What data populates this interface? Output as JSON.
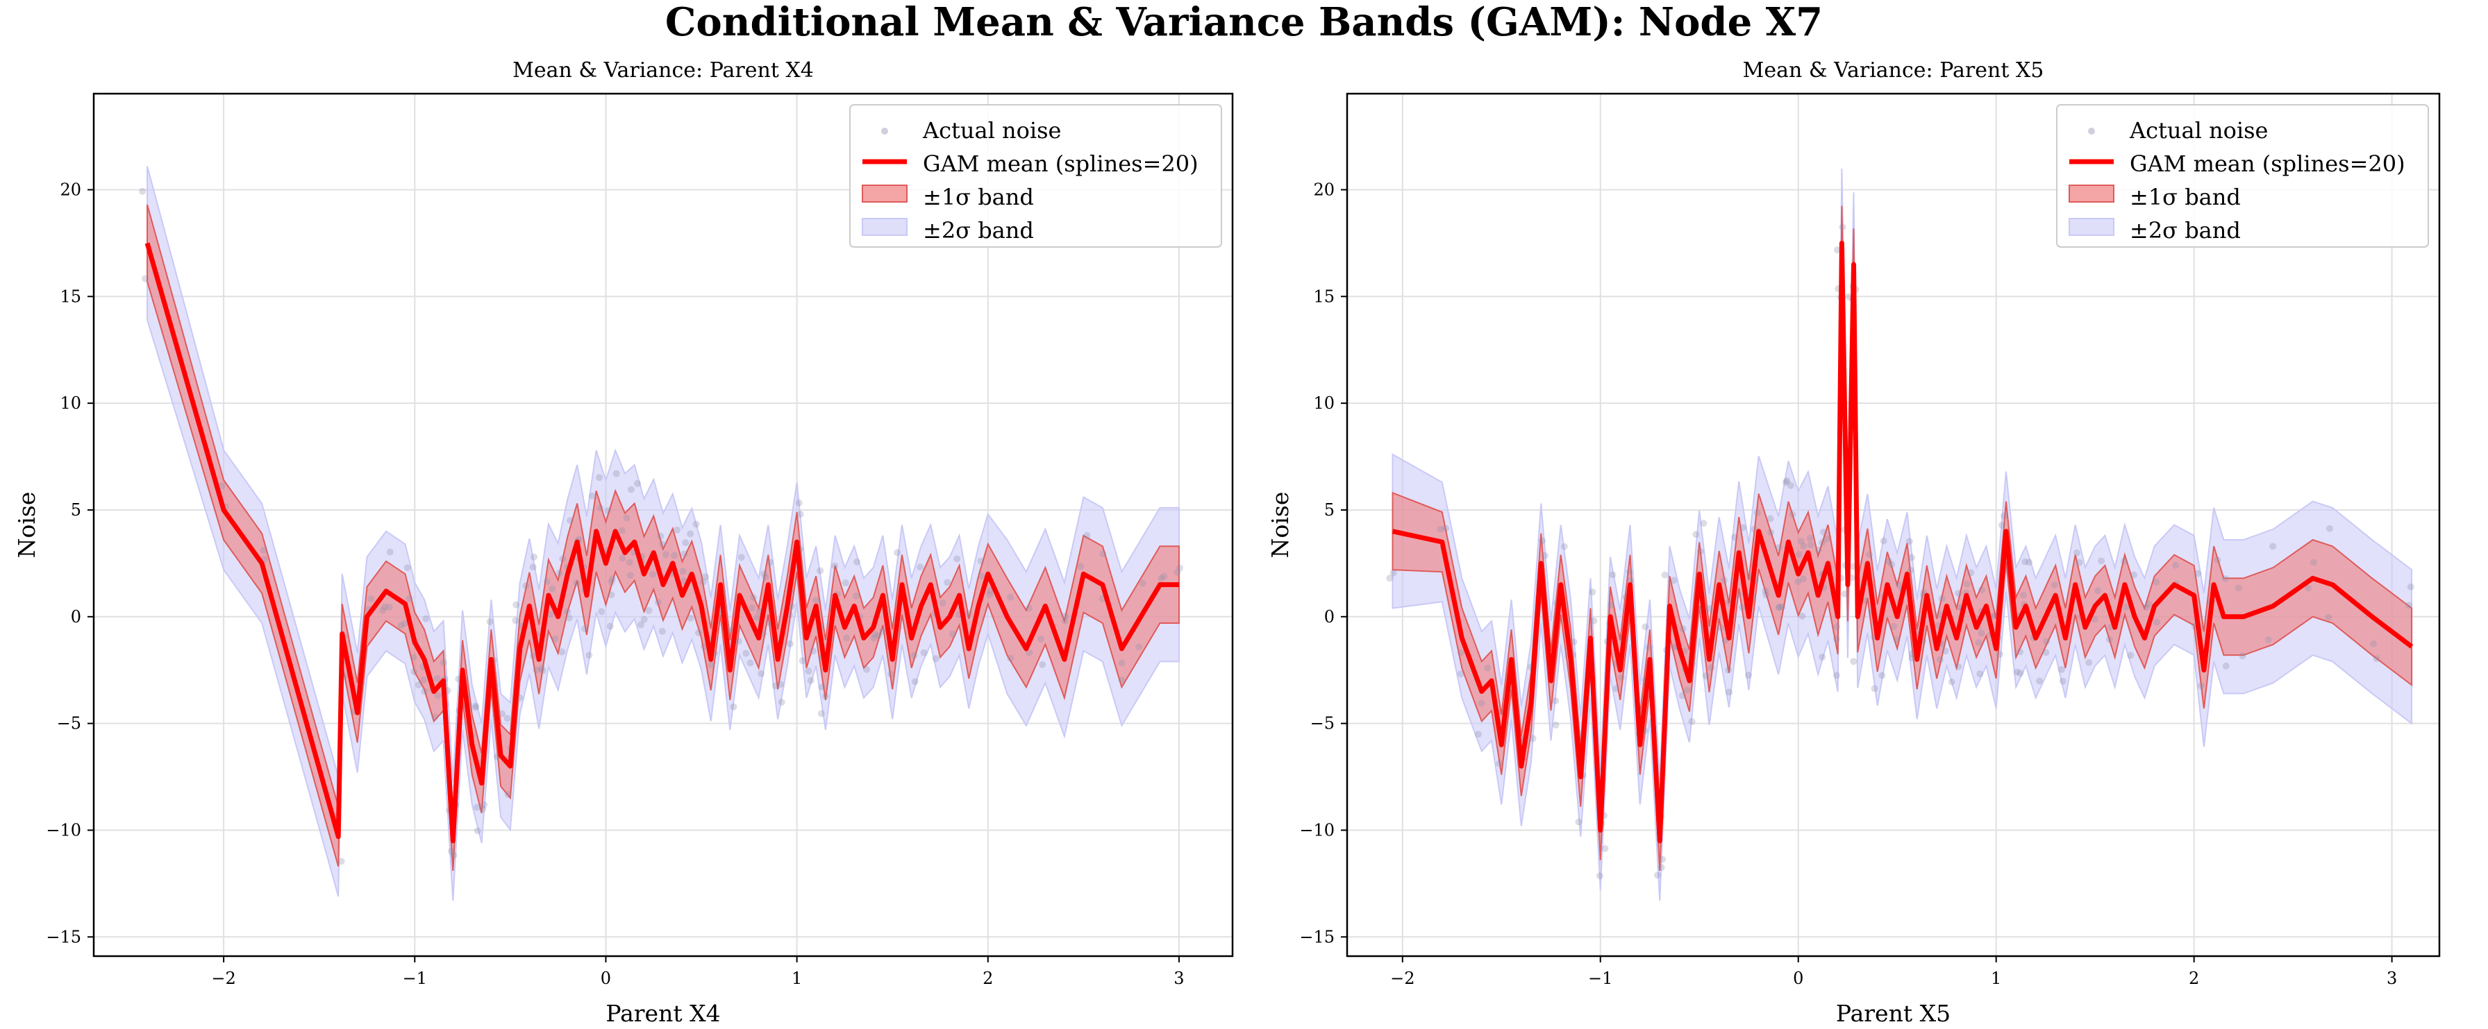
{
  "title": "Conditional Mean & Variance Bands (GAM): Node X7",
  "colors": {
    "mean": "#ff0000",
    "band1": "#f07f7f",
    "band2": "#c9c9f7",
    "points": "#8a8aa8",
    "grid": "#e0e0e0"
  },
  "chart_data": [
    {
      "type": "line",
      "title": "Mean & Variance: Parent X4",
      "xlabel": "Parent X4",
      "ylabel": "Noise",
      "xlim": [
        -2.68,
        3.28
      ],
      "ylim": [
        -15.9,
        24.5
      ],
      "xticks": [
        -2,
        -1,
        0,
        1,
        2,
        3
      ],
      "xtick_labels": [
        "−2",
        "−1",
        "0",
        "1",
        "2",
        "3"
      ],
      "yticks": [
        -15,
        -10,
        -5,
        0,
        5,
        10,
        15,
        20
      ],
      "ytick_labels": [
        "−15",
        "−10",
        "−5",
        "0",
        "5",
        "10",
        "15",
        "20"
      ],
      "grid": true,
      "legend_position": "top-right",
      "legend": [
        "Actual noise",
        "GAM mean (splines=20)",
        "±1σ band",
        "±2σ band"
      ],
      "series": [
        {
          "name": "GAM mean (splines=20)",
          "x": [
            -2.4,
            -2.0,
            -1.8,
            -1.4,
            -1.38,
            -1.3,
            -1.25,
            -1.15,
            -1.05,
            -1.0,
            -0.95,
            -0.9,
            -0.85,
            -0.8,
            -0.75,
            -0.7,
            -0.65,
            -0.6,
            -0.55,
            -0.5,
            -0.45,
            -0.4,
            -0.35,
            -0.3,
            -0.25,
            -0.2,
            -0.15,
            -0.1,
            -0.05,
            0.0,
            0.05,
            0.1,
            0.15,
            0.2,
            0.25,
            0.3,
            0.35,
            0.4,
            0.45,
            0.5,
            0.55,
            0.6,
            0.65,
            0.7,
            0.75,
            0.8,
            0.85,
            0.9,
            0.95,
            1.0,
            1.05,
            1.1,
            1.15,
            1.2,
            1.25,
            1.3,
            1.35,
            1.4,
            1.45,
            1.5,
            1.55,
            1.6,
            1.65,
            1.7,
            1.75,
            1.8,
            1.85,
            1.9,
            1.95,
            2.0,
            2.1,
            2.2,
            2.3,
            2.4,
            2.5,
            2.6,
            2.7,
            2.8,
            2.9,
            3.0
          ],
          "y": [
            17.5,
            5.0,
            2.5,
            -10.3,
            -0.8,
            -4.5,
            0.0,
            1.2,
            0.6,
            -1.2,
            -2.0,
            -3.5,
            -3.0,
            -10.5,
            -2.5,
            -6.0,
            -7.8,
            -2.0,
            -6.5,
            -7.0,
            -1.5,
            0.5,
            -2.0,
            1.0,
            0.0,
            2.0,
            3.5,
            1.0,
            4.0,
            2.5,
            4.0,
            3.0,
            3.5,
            2.0,
            3.0,
            1.5,
            2.5,
            1.0,
            2.0,
            0.5,
            -2.0,
            1.5,
            -2.5,
            1.0,
            0.0,
            -1.0,
            1.5,
            -2.0,
            0.5,
            3.5,
            -1.0,
            0.5,
            -2.5,
            1.0,
            -0.5,
            0.5,
            -1.0,
            -0.5,
            1.0,
            -2.0,
            1.5,
            -1.0,
            0.5,
            1.5,
            -0.5,
            0.0,
            1.0,
            -1.5,
            0.5,
            2.0,
            0.0,
            -1.5,
            0.5,
            -2.0,
            2.0,
            1.5,
            -1.5,
            0.0,
            1.5,
            1.5
          ]
        }
      ]
    },
    {
      "type": "line",
      "title": "Mean & Variance: Parent X5",
      "xlabel": "Parent X5",
      "ylabel": "Noise",
      "xlim": [
        -2.28,
        3.24
      ],
      "ylim": [
        -15.9,
        24.5
      ],
      "xticks": [
        -2,
        -1,
        0,
        1,
        2,
        3
      ],
      "xtick_labels": [
        "−2",
        "−1",
        "0",
        "1",
        "2",
        "3"
      ],
      "yticks": [
        -15,
        -10,
        -5,
        0,
        5,
        10,
        15,
        20
      ],
      "ytick_labels": [
        "−15",
        "−10",
        "−5",
        "0",
        "5",
        "10",
        "15",
        "20"
      ],
      "grid": true,
      "legend_position": "top-right",
      "legend": [
        "Actual noise",
        "GAM mean (splines=20)",
        "±1σ band",
        "±2σ band"
      ],
      "series": [
        {
          "name": "GAM mean (splines=20)",
          "x": [
            -2.05,
            -1.8,
            -1.7,
            -1.6,
            -1.55,
            -1.5,
            -1.45,
            -1.4,
            -1.35,
            -1.3,
            -1.25,
            -1.2,
            -1.15,
            -1.1,
            -1.05,
            -1.0,
            -0.95,
            -0.9,
            -0.85,
            -0.8,
            -0.75,
            -0.7,
            -0.65,
            -0.6,
            -0.55,
            -0.5,
            -0.45,
            -0.4,
            -0.35,
            -0.3,
            -0.25,
            -0.2,
            -0.15,
            -0.1,
            -0.05,
            0.0,
            0.05,
            0.1,
            0.15,
            0.2,
            0.22,
            0.25,
            0.28,
            0.3,
            0.35,
            0.4,
            0.45,
            0.5,
            0.55,
            0.6,
            0.65,
            0.7,
            0.75,
            0.8,
            0.85,
            0.9,
            0.95,
            1.0,
            1.05,
            1.1,
            1.15,
            1.2,
            1.25,
            1.3,
            1.35,
            1.4,
            1.45,
            1.5,
            1.55,
            1.6,
            1.65,
            1.7,
            1.75,
            1.8,
            1.9,
            2.0,
            2.05,
            2.1,
            2.15,
            2.25,
            2.4,
            2.6,
            2.7,
            2.9,
            3.1
          ],
          "y": [
            4.0,
            3.5,
            -1.0,
            -3.5,
            -3.0,
            -6.0,
            -2.0,
            -7.0,
            -4.0,
            2.5,
            -3.0,
            1.5,
            -2.0,
            -7.5,
            -1.0,
            -10.0,
            0.0,
            -2.5,
            1.5,
            -6.0,
            -2.0,
            -10.5,
            0.5,
            -1.5,
            -3.0,
            2.0,
            -2.0,
            1.5,
            -1.0,
            3.0,
            0.0,
            4.0,
            2.5,
            1.0,
            3.5,
            2.0,
            3.0,
            1.0,
            2.5,
            0.0,
            17.5,
            1.5,
            16.5,
            0.0,
            2.5,
            -1.0,
            1.5,
            0.0,
            2.0,
            -2.0,
            1.0,
            -1.5,
            0.5,
            -1.0,
            1.0,
            -0.5,
            0.5,
            -1.5,
            4.0,
            -0.5,
            0.5,
            -1.0,
            0.0,
            1.0,
            -1.0,
            1.5,
            -0.5,
            0.5,
            1.0,
            -0.5,
            1.5,
            0.0,
            -1.0,
            0.5,
            1.5,
            1.0,
            -2.5,
            1.5,
            0.0,
            0.0,
            0.5,
            1.8,
            1.5,
            0.0,
            -1.4
          ]
        }
      ]
    }
  ]
}
